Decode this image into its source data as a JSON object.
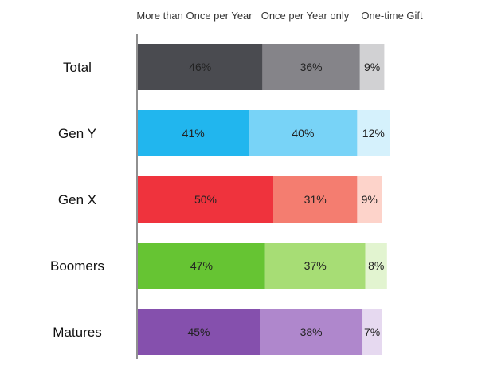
{
  "chart_data": {
    "type": "bar",
    "orientation": "horizontal",
    "stacked": true,
    "categories": [
      "Total",
      "Gen Y",
      "Gen X",
      "Boomers",
      "Matures"
    ],
    "series": [
      {
        "name": "More than Once per Year",
        "values": [
          46,
          41,
          50,
          47,
          45
        ],
        "labels": [
          "46%",
          "41%",
          "50%",
          "47%",
          "45%"
        ]
      },
      {
        "name": "Once per Year only",
        "values": [
          36,
          40,
          31,
          37,
          38
        ],
        "labels": [
          "36%",
          "40%",
          "31%",
          "37%",
          "38%"
        ]
      },
      {
        "name": "One-time Gift",
        "values": [
          9,
          12,
          9,
          8,
          7
        ],
        "labels": [
          "9%",
          "12%",
          "9%",
          "8%",
          "7%"
        ]
      }
    ],
    "colors": [
      [
        "#4a4b50",
        "#858489",
        "#d1d1d3"
      ],
      [
        "#21b6ee",
        "#78d3f7",
        "#d5f1fc"
      ],
      [
        "#ef333d",
        "#f47d70",
        "#fdd3ca"
      ],
      [
        "#66c433",
        "#a7dd75",
        "#e2f4d0"
      ],
      [
        "#8550ad",
        "#af87cc",
        "#e6d9f0"
      ]
    ],
    "legend_position": "top",
    "axis_line": "left"
  }
}
